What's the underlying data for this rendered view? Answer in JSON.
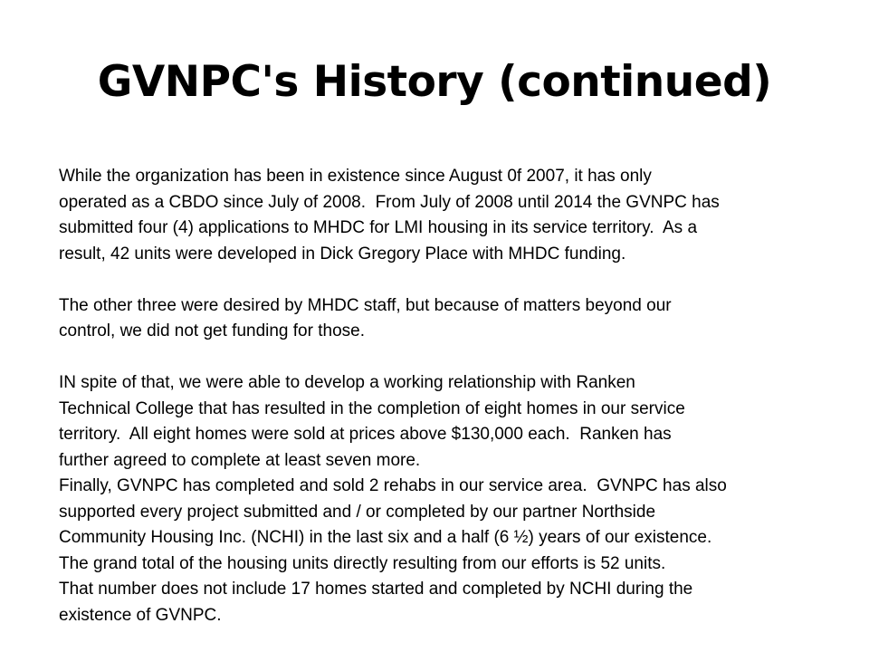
{
  "slide": {
    "title": "GVNPC's History (continued)",
    "paragraphs": [
      {
        "lines": [
          "While the organization has been in existence since August 0f 2007, it has only",
          "operated as a CBDO since July of 2008.  From July of 2008 until 2014 the GVNPC has",
          "submitted four (4) applications to MHDC for LMI housing in its service territory.  As a",
          "result, 42 units were developed in Dick Gregory Place with MHDC funding."
        ]
      },
      {
        "lines": [
          "The other three were desired by MHDC staff, but because of matters beyond our",
          "control, we did not get funding for those."
        ]
      },
      {
        "lines": [
          "IN spite of that, we were able to develop a working relationship with Ranken",
          "Technical College that has resulted in the completion of eight homes in our service",
          "territory.  All eight homes were sold at prices above $130,000 each.  Ranken has",
          "further agreed to complete at least seven more."
        ]
      },
      {
        "lines": [
          "Finally, GVNPC has completed and sold 2 rehabs in our service area.  GVNPC has also",
          "supported every project submitted and / or completed by our partner Northside",
          "Community Housing Inc. (NCHI) in the last six and a half (6 ½) years of our existence.",
          "The grand total of the housing units directly resulting from our efforts is 52 units.",
          "That number does not include 17 homes started and completed by NCHI during the",
          "existence of GVNPC."
        ]
      }
    ]
  }
}
